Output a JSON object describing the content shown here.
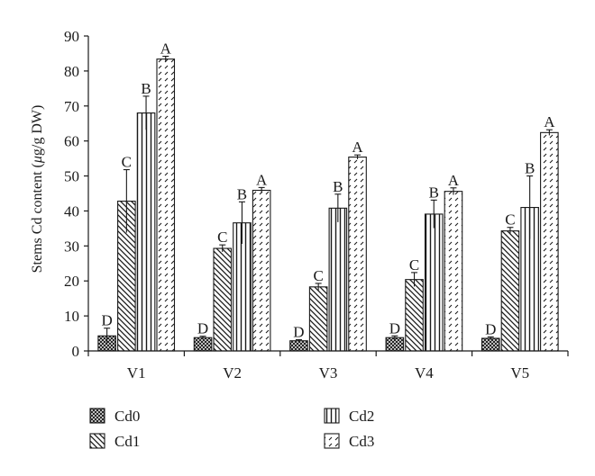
{
  "chart_data": {
    "type": "bar",
    "ylabel": "Stems Cd content (μg/g DW)",
    "ylabel_parts": {
      "pre": "Stems Cd content (",
      "mu": "μ",
      "post": "g/g DW)"
    },
    "ylim": [
      0,
      90
    ],
    "yticks": [
      "0",
      "10",
      "20",
      "30",
      "40",
      "50",
      "60",
      "70",
      "80",
      "90"
    ],
    "categories": [
      "V1",
      "V2",
      "V3",
      "V4",
      "V5"
    ],
    "series": [
      {
        "name": "Cd0",
        "pattern": "crosshatch",
        "values": [
          4.3,
          3.8,
          2.9,
          3.8,
          3.6
        ],
        "errors": [
          2.2,
          0.4,
          0.3,
          0.5,
          0.4
        ],
        "letters": [
          "D",
          "D",
          "D",
          "D",
          "D"
        ]
      },
      {
        "name": "Cd1",
        "pattern": "diag-back",
        "values": [
          42.8,
          29.3,
          18.3,
          20.4,
          34.3
        ],
        "errors": [
          9.0,
          1.0,
          1.0,
          2.0,
          1.0
        ],
        "letters": [
          "C",
          "C",
          "C",
          "C",
          "C"
        ]
      },
      {
        "name": "Cd2",
        "pattern": "vertical",
        "values": [
          68.0,
          36.6,
          40.8,
          39.1,
          41.0
        ],
        "errors": [
          4.8,
          6.0,
          4.0,
          4.0,
          9.0
        ],
        "letters": [
          "B",
          "B",
          "B",
          "B",
          "B"
        ]
      },
      {
        "name": "Cd3",
        "pattern": "diag-dash",
        "values": [
          83.4,
          45.9,
          55.4,
          45.6,
          62.4
        ],
        "errors": [
          0.8,
          0.8,
          0.6,
          1.0,
          0.8
        ],
        "letters": [
          "A",
          "A",
          "A",
          "A",
          "A"
        ]
      }
    ],
    "legend_position": "bottom",
    "grid": false
  }
}
